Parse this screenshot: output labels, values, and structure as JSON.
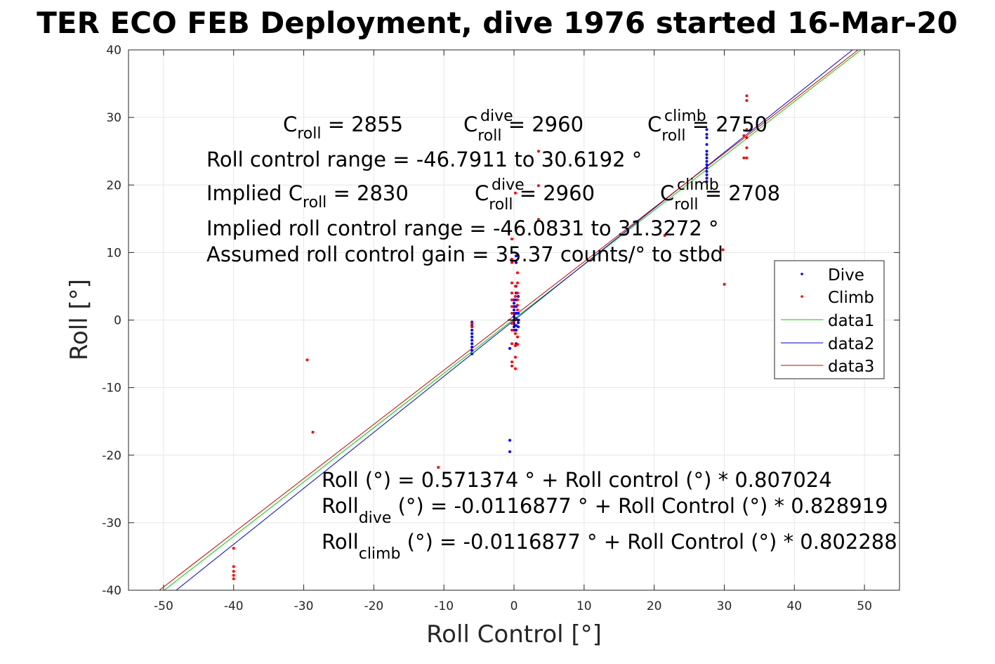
{
  "chart_data": {
    "type": "scatter",
    "title": "TER ECO FEB Deployment, dive 1976 started 16-Mar-20",
    "xlabel": "Roll Control [°]",
    "ylabel": "Roll [°]",
    "xlim": [
      -55,
      55
    ],
    "ylim": [
      -40,
      40
    ],
    "xticks": [
      -50,
      -40,
      -30,
      -20,
      -10,
      0,
      10,
      20,
      30,
      40,
      50
    ],
    "yticks": [
      -40,
      -30,
      -20,
      -10,
      0,
      10,
      20,
      30,
      40
    ],
    "grid": true,
    "legend_position": "right",
    "series": [
      {
        "name": "Dive",
        "type": "scatter",
        "color": "#0000ff",
        "points": [
          [
            -6,
            -0.3
          ],
          [
            -6,
            -0.8
          ],
          [
            -6,
            -1.5
          ],
          [
            -6,
            -2
          ],
          [
            -6,
            -2.5
          ],
          [
            -6,
            -3
          ],
          [
            -6,
            -3.5
          ],
          [
            -6,
            -4
          ],
          [
            -6,
            -4.5
          ],
          [
            -6,
            -5
          ],
          [
            -0.6,
            -17.8
          ],
          [
            -0.6,
            -19.5
          ],
          [
            -0.6,
            -4.2
          ],
          [
            0,
            0
          ],
          [
            0,
            0.5
          ],
          [
            0,
            1
          ],
          [
            0,
            1.5
          ],
          [
            0,
            2
          ],
          [
            0,
            2.5
          ],
          [
            0,
            3
          ],
          [
            0,
            -0.5
          ],
          [
            0,
            -1
          ],
          [
            0,
            -1.5
          ],
          [
            0.3,
            0.2
          ],
          [
            0.3,
            1
          ],
          [
            0.3,
            2
          ],
          [
            0.3,
            3
          ],
          [
            0.3,
            4
          ],
          [
            0.3,
            5
          ],
          [
            0.3,
            8.5
          ],
          [
            0.3,
            9.5
          ],
          [
            0.3,
            -0.8
          ],
          [
            0.3,
            -1.5
          ],
          [
            0.3,
            -3.5
          ],
          [
            0.6,
            0
          ],
          [
            0.6,
            1
          ],
          [
            0.6,
            -1
          ],
          [
            0.6,
            3.5
          ],
          [
            0.6,
            -0.4
          ],
          [
            27.5,
            20.5
          ],
          [
            27.5,
            21
          ],
          [
            27.5,
            21.5
          ],
          [
            27.5,
            22
          ],
          [
            27.5,
            22.5
          ],
          [
            27.5,
            23
          ],
          [
            27.5,
            23.5
          ],
          [
            27.5,
            24
          ],
          [
            27.5,
            24.5
          ],
          [
            27.5,
            25
          ],
          [
            27.5,
            26
          ],
          [
            27.5,
            27
          ],
          [
            27.5,
            27.5
          ],
          [
            27.5,
            28.2
          ]
        ]
      },
      {
        "name": "Climb",
        "type": "scatter",
        "color": "#ff0000",
        "points": [
          [
            -40,
            -33.8
          ],
          [
            -40,
            -36.5
          ],
          [
            -40,
            -37.2
          ],
          [
            -40,
            -37.8
          ],
          [
            -40,
            -38.3
          ],
          [
            -29.5,
            -5.9
          ],
          [
            -28.7,
            -16.6
          ],
          [
            -10.8,
            -21.8
          ],
          [
            -6,
            -0.5
          ],
          [
            -6,
            -1
          ],
          [
            -0.3,
            12
          ],
          [
            -0.3,
            9
          ],
          [
            -0.3,
            8.5
          ],
          [
            -0.3,
            5.5
          ],
          [
            -0.3,
            4
          ],
          [
            -0.3,
            3
          ],
          [
            -0.3,
            2
          ],
          [
            -0.3,
            1
          ],
          [
            -0.3,
            -0.5
          ],
          [
            -0.3,
            -1.5
          ],
          [
            -0.3,
            -3.5
          ],
          [
            -0.3,
            -6.2
          ],
          [
            -0.3,
            -6.8
          ],
          [
            0.2,
            18.8
          ],
          [
            0.2,
            5
          ],
          [
            0.2,
            3.5
          ],
          [
            0.2,
            0
          ],
          [
            0.2,
            -2
          ],
          [
            0.2,
            -3.8
          ],
          [
            0.2,
            -5.5
          ],
          [
            0.2,
            -7.2
          ],
          [
            0.5,
            7
          ],
          [
            0.5,
            5.5
          ],
          [
            0.5,
            4
          ],
          [
            0.5,
            3
          ],
          [
            0.5,
            2.2
          ],
          [
            0.5,
            1.5
          ],
          [
            0.5,
            -2.5
          ],
          [
            0.5,
            -3.6
          ],
          [
            3.5,
            25
          ],
          [
            3.5,
            19.9
          ],
          [
            3.5,
            14.9
          ],
          [
            21.5,
            12.5
          ],
          [
            29.8,
            10.4
          ],
          [
            30,
            5.3
          ],
          [
            32.8,
            24
          ],
          [
            32.8,
            27.3
          ],
          [
            33.2,
            33.2
          ],
          [
            33.2,
            32.5
          ],
          [
            33.2,
            28.2
          ],
          [
            33.2,
            27
          ],
          [
            33.2,
            25.5
          ],
          [
            33.2,
            24
          ]
        ]
      },
      {
        "name": "data1",
        "type": "line",
        "color": "#00cc00",
        "x": [
          -49.9,
          49.5
        ],
        "y": [
          -40,
          40
        ]
      },
      {
        "name": "data2",
        "type": "line",
        "color": "#0000cc",
        "x": [
          -48.2,
          48.3
        ],
        "y": [
          -40,
          40
        ]
      },
      {
        "name": "data3",
        "type": "line",
        "color": "#cc0000",
        "x": [
          -50.6,
          49.1
        ],
        "y": [
          -40,
          40
        ]
      }
    ],
    "center_marker": {
      "color": "#000000",
      "x": 0,
      "y": 0
    },
    "annotations": {
      "c_roll": "C",
      "c_roll_sub": "roll",
      "c_roll_value": " = 2855",
      "c_dive": "C",
      "c_dive_sup": "dive",
      "c_dive_sub": "roll",
      "c_dive_value": " = 2960",
      "c_climb": "C",
      "c_climb_sup": "climb",
      "c_climb_sub": "roll",
      "c_climb_value": " = 2750",
      "range": "Roll control range = -46.7911 to 30.6192 °",
      "implied_prefix": "Implied C",
      "implied_sub": "roll",
      "implied_value": " = 2830",
      "implied_dive": "C",
      "implied_dive_sup": "dive",
      "implied_dive_sub": "roll",
      "implied_dive_value": " = 2960",
      "implied_climb": "C",
      "implied_climb_sup": "climb",
      "implied_climb_sub": "roll",
      "implied_climb_value": " = 2708",
      "implied_range": "Implied roll control range = -46.0831 to 31.3272 °",
      "gain": "Assumed roll control gain = 35.37 counts/° to stbd",
      "fit_all": "Roll (°) = 0.571374 ° + Roll control (°) * 0.807024",
      "fit_dive_prefix": "Roll",
      "fit_dive_sub": "dive",
      "fit_dive_rest": " (°) = -0.0116877 ° + Roll Control (°) * 0.828919",
      "fit_climb_prefix": "Roll",
      "fit_climb_sub": "climb",
      "fit_climb_rest": " (°) = -0.0116877 ° + Roll Control (°) * 0.802288"
    }
  }
}
